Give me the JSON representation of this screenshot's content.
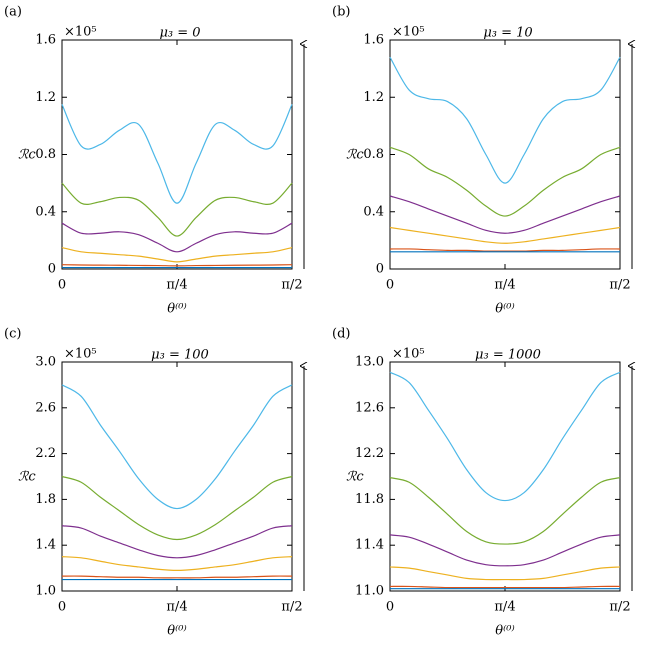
{
  "chart_data": [
    {
      "type": "line",
      "panel_label": "(a)",
      "title": "μ₃ = 0",
      "multiplier": "×10⁵",
      "y_label": "ℛc",
      "x_label": "θ⁽⁰⁾",
      "x": [
        0,
        0.1309,
        0.2618,
        0.3927,
        0.5236,
        0.6545,
        0.7854,
        0.9163,
        1.0472,
        1.1781,
        1.309,
        1.4399,
        1.5708
      ],
      "xlim": [
        0,
        1.5708
      ],
      "xticks": [
        0,
        {
          "value": 0.7854,
          "label": "π/4"
        },
        {
          "value": 1.5708,
          "label": "π/2"
        }
      ],
      "ylim": [
        0,
        1.6
      ],
      "yticks": [
        0,
        0.4,
        0.8,
        1.2,
        1.6
      ],
      "series": [
        {
          "color": "#4db8e8",
          "values": [
            1.15,
            0.86,
            0.87,
            0.97,
            1.01,
            0.74,
            0.46,
            0.74,
            1.01,
            0.97,
            0.87,
            0.86,
            1.15
          ]
        },
        {
          "color": "#77ac30",
          "values": [
            0.6,
            0.46,
            0.47,
            0.5,
            0.48,
            0.36,
            0.23,
            0.36,
            0.48,
            0.5,
            0.47,
            0.46,
            0.6
          ]
        },
        {
          "color": "#7e2f8e",
          "values": [
            0.32,
            0.25,
            0.25,
            0.26,
            0.24,
            0.18,
            0.12,
            0.18,
            0.24,
            0.26,
            0.25,
            0.25,
            0.32
          ]
        },
        {
          "color": "#edb120",
          "values": [
            0.15,
            0.12,
            0.11,
            0.1,
            0.09,
            0.07,
            0.05,
            0.07,
            0.09,
            0.1,
            0.11,
            0.12,
            0.15
          ]
        },
        {
          "color": "#d95319",
          "values": [
            0.03,
            0.028,
            0.027,
            0.026,
            0.025,
            0.024,
            0.022,
            0.024,
            0.025,
            0.026,
            0.027,
            0.028,
            0.03
          ]
        },
        {
          "color": "#0072bd",
          "values": [
            0.01,
            0.01,
            0.01,
            0.01,
            0.01,
            0.01,
            0.01,
            0.01,
            0.01,
            0.01,
            0.01,
            0.01,
            0.01
          ]
        }
      ]
    },
    {
      "type": "line",
      "panel_label": "(b)",
      "title": "μ₃ = 10",
      "multiplier": "×10⁵",
      "y_label": "ℛc",
      "x_label": "θ⁽⁰⁾",
      "x": [
        0,
        0.1309,
        0.2618,
        0.3927,
        0.5236,
        0.6545,
        0.7854,
        0.9163,
        1.0472,
        1.1781,
        1.309,
        1.4399,
        1.5708
      ],
      "xlim": [
        0,
        1.5708
      ],
      "xticks": [
        0,
        {
          "value": 0.7854,
          "label": "π/4"
        },
        {
          "value": 1.5708,
          "label": "π/2"
        }
      ],
      "ylim": [
        0,
        1.6
      ],
      "yticks": [
        0,
        0.4,
        0.8,
        1.2,
        1.6
      ],
      "series": [
        {
          "color": "#4db8e8",
          "values": [
            1.48,
            1.25,
            1.19,
            1.17,
            1.05,
            0.8,
            0.6,
            0.8,
            1.05,
            1.17,
            1.19,
            1.25,
            1.48
          ]
        },
        {
          "color": "#77ac30",
          "values": [
            0.85,
            0.8,
            0.7,
            0.64,
            0.55,
            0.44,
            0.37,
            0.44,
            0.55,
            0.64,
            0.7,
            0.8,
            0.85
          ]
        },
        {
          "color": "#7e2f8e",
          "values": [
            0.51,
            0.47,
            0.42,
            0.37,
            0.32,
            0.27,
            0.25,
            0.27,
            0.32,
            0.37,
            0.42,
            0.47,
            0.51
          ]
        },
        {
          "color": "#edb120",
          "values": [
            0.29,
            0.27,
            0.25,
            0.23,
            0.21,
            0.19,
            0.18,
            0.19,
            0.21,
            0.23,
            0.25,
            0.27,
            0.29
          ]
        },
        {
          "color": "#d95319",
          "values": [
            0.14,
            0.14,
            0.135,
            0.13,
            0.13,
            0.125,
            0.125,
            0.125,
            0.13,
            0.13,
            0.135,
            0.14,
            0.14
          ]
        },
        {
          "color": "#0072bd",
          "values": [
            0.12,
            0.12,
            0.12,
            0.12,
            0.12,
            0.12,
            0.12,
            0.12,
            0.12,
            0.12,
            0.12,
            0.12,
            0.12
          ]
        }
      ]
    },
    {
      "type": "line",
      "panel_label": "(c)",
      "title": "μ₃ = 100",
      "multiplier": "×10⁵",
      "y_label": "ℛc",
      "x_label": "θ⁽⁰⁾",
      "x": [
        0,
        0.1309,
        0.2618,
        0.3927,
        0.5236,
        0.6545,
        0.7854,
        0.9163,
        1.0472,
        1.1781,
        1.309,
        1.4399,
        1.5708
      ],
      "xlim": [
        0,
        1.5708
      ],
      "xticks": [
        0,
        {
          "value": 0.7854,
          "label": "π/4"
        },
        {
          "value": 1.5708,
          "label": "π/2"
        }
      ],
      "ylim": [
        1,
        3
      ],
      "yticks": [
        {
          "value": 1,
          "label": "1.0"
        },
        1.4,
        1.8,
        2.2,
        2.6,
        {
          "value": 3,
          "label": "3.0"
        }
      ],
      "series": [
        {
          "color": "#4db8e8",
          "values": [
            2.8,
            2.7,
            2.45,
            2.22,
            1.98,
            1.8,
            1.72,
            1.8,
            1.98,
            2.22,
            2.45,
            2.7,
            2.8
          ]
        },
        {
          "color": "#77ac30",
          "values": [
            2.0,
            1.95,
            1.82,
            1.7,
            1.58,
            1.49,
            1.45,
            1.49,
            1.58,
            1.7,
            1.82,
            1.95,
            2.0
          ]
        },
        {
          "color": "#7e2f8e",
          "values": [
            1.57,
            1.55,
            1.48,
            1.42,
            1.36,
            1.31,
            1.29,
            1.31,
            1.36,
            1.42,
            1.48,
            1.55,
            1.57
          ]
        },
        {
          "color": "#edb120",
          "values": [
            1.3,
            1.29,
            1.26,
            1.23,
            1.21,
            1.19,
            1.18,
            1.19,
            1.21,
            1.23,
            1.26,
            1.29,
            1.3
          ]
        },
        {
          "color": "#d95319",
          "values": [
            1.13,
            1.13,
            1.125,
            1.12,
            1.12,
            1.115,
            1.115,
            1.115,
            1.12,
            1.12,
            1.125,
            1.13,
            1.13
          ]
        },
        {
          "color": "#0072bd",
          "values": [
            1.1,
            1.1,
            1.1,
            1.1,
            1.1,
            1.1,
            1.1,
            1.1,
            1.1,
            1.1,
            1.1,
            1.1,
            1.1
          ]
        }
      ]
    },
    {
      "type": "line",
      "panel_label": "(d)",
      "title": "μ₃ = 1000",
      "multiplier": "×10⁵",
      "y_label": "ℛc",
      "x_label": "θ⁽⁰⁾",
      "x": [
        0,
        0.1309,
        0.2618,
        0.3927,
        0.5236,
        0.6545,
        0.7854,
        0.9163,
        1.0472,
        1.1781,
        1.309,
        1.4399,
        1.5708
      ],
      "xlim": [
        0,
        1.5708
      ],
      "xticks": [
        0,
        {
          "value": 0.7854,
          "label": "π/4"
        },
        {
          "value": 1.5708,
          "label": "π/2"
        }
      ],
      "ylim": [
        11,
        13
      ],
      "yticks": [
        {
          "value": 11,
          "label": "11.0"
        },
        11.4,
        11.8,
        12.2,
        12.6,
        {
          "value": 13,
          "label": "13.0"
        }
      ],
      "series": [
        {
          "color": "#4db8e8",
          "values": [
            12.91,
            12.82,
            12.58,
            12.33,
            12.06,
            11.86,
            11.79,
            11.86,
            12.06,
            12.33,
            12.58,
            12.82,
            12.91
          ]
        },
        {
          "color": "#77ac30",
          "values": [
            11.99,
            11.95,
            11.82,
            11.67,
            11.52,
            11.43,
            11.41,
            11.43,
            11.52,
            11.67,
            11.82,
            11.95,
            11.99
          ]
        },
        {
          "color": "#7e2f8e",
          "values": [
            11.49,
            11.47,
            11.41,
            11.34,
            11.27,
            11.23,
            11.22,
            11.23,
            11.27,
            11.34,
            11.41,
            11.47,
            11.49
          ]
        },
        {
          "color": "#edb120",
          "values": [
            11.21,
            11.2,
            11.17,
            11.14,
            11.11,
            11.1,
            11.1,
            11.1,
            11.11,
            11.14,
            11.17,
            11.2,
            11.21
          ]
        },
        {
          "color": "#d95319",
          "values": [
            11.04,
            11.04,
            11.035,
            11.03,
            11.03,
            11.03,
            11.03,
            11.03,
            11.03,
            11.03,
            11.035,
            11.04,
            11.04
          ]
        },
        {
          "color": "#0072bd",
          "values": [
            11.02,
            11.02,
            11.02,
            11.02,
            11.02,
            11.02,
            11.02,
            11.02,
            11.02,
            11.02,
            11.02,
            11.02,
            11.02
          ]
        }
      ]
    }
  ]
}
